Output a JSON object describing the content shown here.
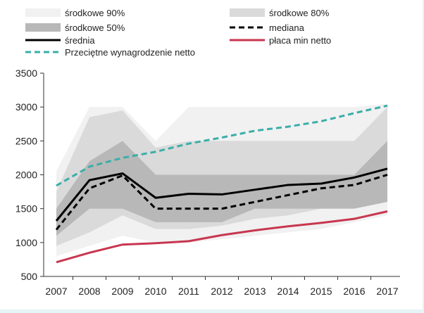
{
  "chart_data": {
    "type": "area",
    "categories": [
      "2007",
      "2008",
      "2009",
      "2010",
      "2011",
      "2012",
      "2013",
      "2014",
      "2015",
      "2016",
      "2017"
    ],
    "ylim": [
      500,
      3500
    ],
    "yticks": [
      500,
      1000,
      1500,
      2000,
      2500,
      3000,
      3500
    ],
    "grid": false,
    "legend_position": "top",
    "bands": [
      {
        "name": "środkowe 90%",
        "color": "#f1f1f1",
        "low": [
          800,
          950,
          1100,
          1000,
          1000,
          1050,
          1100,
          1150,
          1200,
          1300,
          1400
        ],
        "high": [
          2050,
          3000,
          3000,
          2500,
          3000,
          3000,
          3000,
          3000,
          3000,
          3000,
          3050
        ]
      },
      {
        "name": "środkowe 80%",
        "color": "#dadada",
        "low": [
          950,
          1150,
          1400,
          1200,
          1200,
          1250,
          1350,
          1400,
          1500,
          1500,
          1600
        ],
        "high": [
          1750,
          2850,
          2950,
          2400,
          2500,
          2500,
          2500,
          2500,
          2500,
          2500,
          3000
        ]
      },
      {
        "name": "środkowe 50%",
        "color": "#b8b8b8",
        "low": [
          1100,
          1500,
          1500,
          1300,
          1300,
          1300,
          1500,
          1500,
          1500,
          1500,
          1600
        ],
        "high": [
          1500,
          2200,
          2500,
          2000,
          2000,
          2000,
          2000,
          2000,
          2000,
          2000,
          2500
        ]
      }
    ],
    "series": [
      {
        "name": "mediana",
        "color": "#000000",
        "style": "dashed",
        "values": [
          1190,
          1800,
          1990,
          1500,
          1500,
          1500,
          1600,
          1700,
          1800,
          1850,
          2000
        ]
      },
      {
        "name": "średnia",
        "color": "#000000",
        "style": "solid",
        "values": [
          1320,
          1920,
          2020,
          1660,
          1720,
          1710,
          1780,
          1850,
          1870,
          1960,
          2090
        ]
      },
      {
        "name": "płaca min netto",
        "color": "#c8364f",
        "style": "solid",
        "values": [
          710,
          850,
          970,
          990,
          1020,
          1110,
          1180,
          1240,
          1290,
          1350,
          1460
        ]
      },
      {
        "name": "Przeciętne wynagrodzenie netto",
        "color": "#3aaea9",
        "style": "dashed",
        "values": [
          1840,
          2120,
          2250,
          2340,
          2460,
          2550,
          2650,
          2710,
          2790,
          2910,
          3020
        ]
      }
    ]
  }
}
